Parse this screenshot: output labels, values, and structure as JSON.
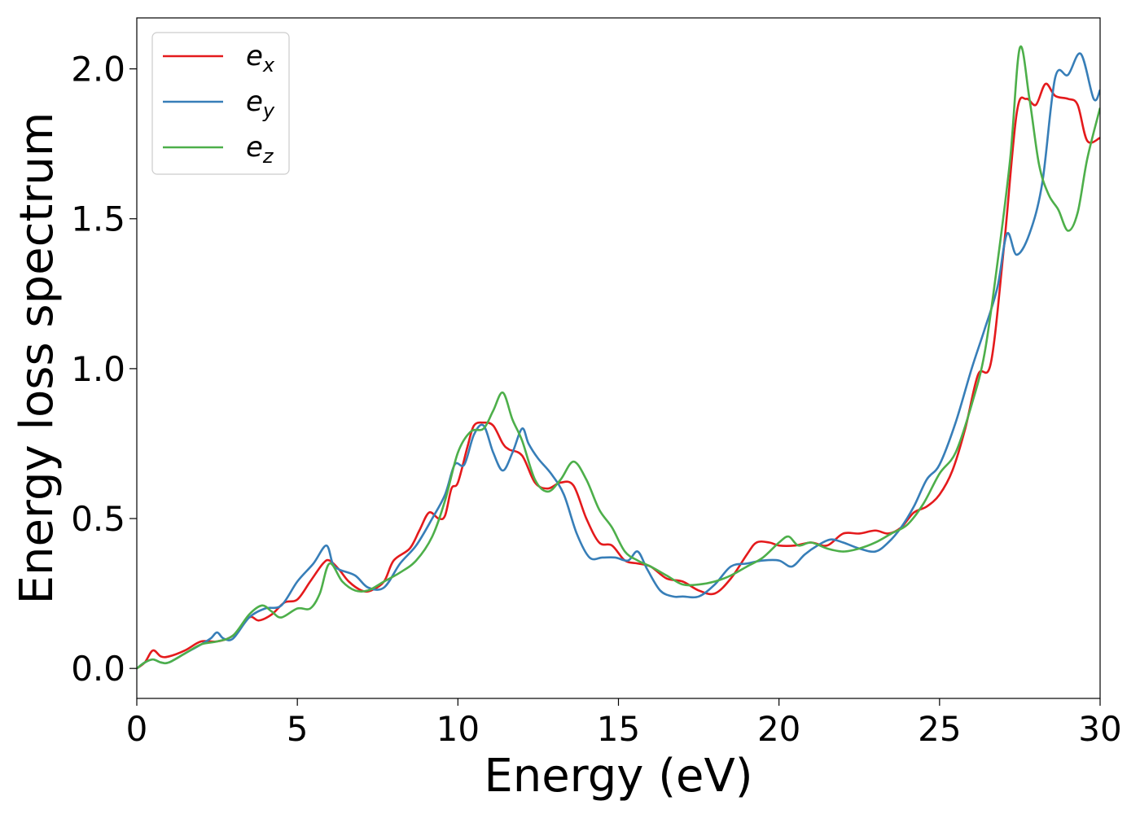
{
  "chart_data": {
    "type": "line",
    "title": "",
    "xlabel": "Energy (eV)",
    "ylabel": "Energy loss spectrum",
    "xlim": [
      0,
      30
    ],
    "ylim": [
      -0.1,
      2.17
    ],
    "xticks": [
      0,
      5,
      10,
      15,
      20,
      25,
      30
    ],
    "xtick_labels": [
      "0",
      "5",
      "10",
      "15",
      "20",
      "25",
      "30"
    ],
    "yticks": [
      0.0,
      0.5,
      1.0,
      1.5,
      2.0
    ],
    "ytick_labels": [
      "0.0",
      "0.5",
      "1.0",
      "1.5",
      "2.0"
    ],
    "grid": false,
    "legend_position": "top-left",
    "series": [
      {
        "name": "e_x",
        "label_base": "e",
        "label_sub": "x",
        "color": "#e41a1c",
        "x": [
          0,
          0.25,
          0.5,
          0.75,
          1,
          1.5,
          2,
          2.5,
          3,
          3.5,
          3.8,
          4.2,
          4.6,
          5,
          5.4,
          5.8,
          6,
          6.3,
          6.6,
          7,
          7.3,
          7.7,
          8,
          8.5,
          8.8,
          9.1,
          9.4,
          9.6,
          9.8,
          10,
          10.3,
          10.5,
          10.8,
          11.1,
          11.4,
          11.6,
          12,
          12.4,
          12.8,
          13.2,
          13.6,
          14,
          14.4,
          14.8,
          15.2,
          15.6,
          16,
          16.5,
          17,
          17.5,
          18,
          18.5,
          19,
          19.3,
          19.7,
          20,
          20.5,
          21,
          21.5,
          22,
          22.5,
          23,
          23.4,
          23.8,
          24.2,
          24.6,
          25,
          25.4,
          25.8,
          26.2,
          26.6,
          27,
          27.4,
          27.7,
          28,
          28.3,
          28.6,
          29,
          29.3,
          29.6,
          30
        ],
        "y": [
          0.0,
          0.02,
          0.06,
          0.04,
          0.04,
          0.06,
          0.09,
          0.09,
          0.11,
          0.17,
          0.16,
          0.18,
          0.22,
          0.23,
          0.29,
          0.35,
          0.36,
          0.33,
          0.29,
          0.26,
          0.26,
          0.29,
          0.36,
          0.4,
          0.46,
          0.52,
          0.5,
          0.51,
          0.6,
          0.62,
          0.74,
          0.81,
          0.82,
          0.81,
          0.75,
          0.73,
          0.71,
          0.62,
          0.6,
          0.62,
          0.61,
          0.5,
          0.42,
          0.41,
          0.36,
          0.35,
          0.34,
          0.3,
          0.29,
          0.26,
          0.25,
          0.3,
          0.38,
          0.42,
          0.42,
          0.41,
          0.41,
          0.42,
          0.41,
          0.45,
          0.45,
          0.46,
          0.45,
          0.47,
          0.52,
          0.54,
          0.58,
          0.66,
          0.8,
          0.98,
          1.02,
          1.4,
          1.85,
          1.9,
          1.88,
          1.95,
          1.91,
          1.9,
          1.88,
          1.76,
          1.77
        ]
      },
      {
        "name": "e_y",
        "label_base": "e",
        "label_sub": "y",
        "color": "#377eb8",
        "x": [
          0,
          0.25,
          0.5,
          0.75,
          1,
          1.5,
          2,
          2.3,
          2.5,
          2.7,
          3,
          3.5,
          4,
          4.5,
          5,
          5.5,
          5.9,
          6.1,
          6.3,
          6.8,
          7.2,
          7.7,
          8.2,
          8.7,
          9.2,
          9.6,
          9.9,
          10.2,
          10.5,
          10.8,
          11.1,
          11.4,
          11.7,
          12,
          12.2,
          12.5,
          12.9,
          13.3,
          13.7,
          14.1,
          14.5,
          14.9,
          15.3,
          15.6,
          15.9,
          16.3,
          16.7,
          17,
          17.5,
          18,
          18.5,
          19,
          19.5,
          20,
          20.4,
          20.8,
          21.2,
          21.6,
          22,
          22.5,
          23,
          23.4,
          23.8,
          24.2,
          24.6,
          25,
          25.5,
          26,
          26.4,
          26.8,
          27.1,
          27.4,
          27.8,
          28.2,
          28.6,
          29,
          29.4,
          29.8,
          30
        ],
        "y": [
          0.0,
          0.02,
          0.03,
          0.02,
          0.02,
          0.05,
          0.08,
          0.1,
          0.12,
          0.1,
          0.1,
          0.17,
          0.2,
          0.21,
          0.29,
          0.35,
          0.41,
          0.35,
          0.33,
          0.31,
          0.27,
          0.27,
          0.35,
          0.41,
          0.5,
          0.58,
          0.68,
          0.68,
          0.78,
          0.81,
          0.72,
          0.66,
          0.72,
          0.8,
          0.75,
          0.7,
          0.65,
          0.58,
          0.45,
          0.37,
          0.37,
          0.37,
          0.36,
          0.39,
          0.33,
          0.26,
          0.24,
          0.24,
          0.24,
          0.28,
          0.34,
          0.35,
          0.36,
          0.36,
          0.34,
          0.38,
          0.41,
          0.43,
          0.42,
          0.4,
          0.39,
          0.42,
          0.47,
          0.54,
          0.63,
          0.68,
          0.82,
          1.0,
          1.13,
          1.27,
          1.45,
          1.38,
          1.45,
          1.62,
          1.97,
          1.98,
          2.05,
          1.9,
          1.93
        ]
      },
      {
        "name": "e_z",
        "label_base": "e",
        "label_sub": "z",
        "color": "#4daf4a",
        "x": [
          0,
          0.25,
          0.5,
          0.75,
          1,
          1.5,
          2,
          2.5,
          3,
          3.5,
          3.9,
          4.2,
          4.5,
          5,
          5.4,
          5.7,
          6,
          6.4,
          6.8,
          7.2,
          7.7,
          8.2,
          8.7,
          9.2,
          9.6,
          10,
          10.4,
          10.8,
          11.1,
          11.4,
          11.7,
          12,
          12.4,
          12.8,
          13.2,
          13.6,
          14,
          14.4,
          14.8,
          15.2,
          15.6,
          16,
          16.5,
          17,
          17.5,
          18,
          18.5,
          19,
          19.5,
          20,
          20.3,
          20.6,
          21,
          21.5,
          22,
          22.5,
          23,
          23.5,
          24,
          24.5,
          25,
          25.5,
          26,
          26.4,
          26.8,
          27.2,
          27.5,
          27.8,
          28.1,
          28.4,
          28.7,
          29,
          29.3,
          29.6,
          30
        ],
        "y": [
          0.0,
          0.02,
          0.03,
          0.02,
          0.02,
          0.05,
          0.08,
          0.09,
          0.11,
          0.18,
          0.21,
          0.19,
          0.17,
          0.2,
          0.2,
          0.25,
          0.35,
          0.29,
          0.26,
          0.26,
          0.29,
          0.32,
          0.36,
          0.44,
          0.56,
          0.72,
          0.79,
          0.8,
          0.86,
          0.92,
          0.83,
          0.76,
          0.63,
          0.59,
          0.63,
          0.69,
          0.63,
          0.53,
          0.47,
          0.39,
          0.36,
          0.34,
          0.31,
          0.28,
          0.28,
          0.29,
          0.31,
          0.34,
          0.37,
          0.42,
          0.44,
          0.41,
          0.42,
          0.4,
          0.39,
          0.4,
          0.42,
          0.45,
          0.48,
          0.55,
          0.65,
          0.72,
          0.88,
          1.05,
          1.35,
          1.7,
          2.07,
          1.9,
          1.68,
          1.58,
          1.53,
          1.46,
          1.52,
          1.7,
          1.87
        ]
      }
    ]
  }
}
